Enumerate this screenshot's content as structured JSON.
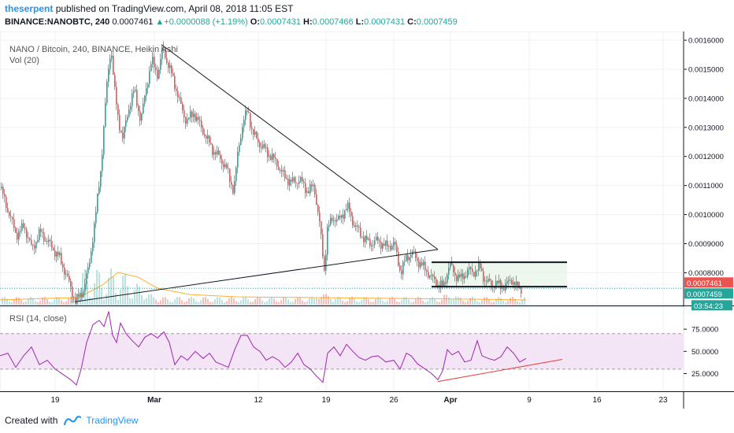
{
  "header": {
    "author": "theserpent",
    "publish_text": " published on TradingView.com, April 08, 2018 11:05 EST",
    "symbol": "BINANCE:NANOBTC, 240",
    "last": "0.0007461",
    "change_arrow": "▲",
    "change": "+0.0000088 (+1.19%)",
    "o_label": "O:",
    "o": "0.0007431",
    "h_label": "H:",
    "h": "0.0007466",
    "l_label": "L:",
    "l": "0.0007431",
    "c_label": "C:",
    "c": "0.0007459"
  },
  "footer": {
    "created_with": "Created with",
    "brand": "TradingView"
  },
  "colors": {
    "up": "#26a69a",
    "down": "#ef5350",
    "rsi_line": "#9c27b0",
    "rsi_band": "#f3e5f5",
    "trend": "#131722",
    "support": "#e53935",
    "accent": "#2196f3"
  },
  "chart_data": [
    {
      "type": "candlestick",
      "title": "NANO / Bitcoin, 240, BINANCE, Heikin Ashi",
      "volume_label": "Vol (20)",
      "ylim": [
        0.00069,
        0.00163
      ],
      "y_ticks": [
        "0.0016000",
        "0.0015000",
        "0.0014000",
        "0.0013000",
        "0.0012000",
        "0.0011000",
        "0.0010000",
        "0.0009000",
        "0.0008000"
      ],
      "y_tick_values": [
        0.0016,
        0.0015,
        0.0014,
        0.0013,
        0.0012,
        0.0011,
        0.001,
        0.0009,
        0.0008
      ],
      "x_ticks": [
        "19",
        "Mar",
        "12",
        "19",
        "26",
        "Apr",
        "9",
        "16",
        "23"
      ],
      "price_labels": [
        {
          "text": "0.0007461",
          "value": 0.0007461,
          "color": "#ef5350"
        },
        {
          "text": "0.0007459",
          "value": 0.0007459,
          "color": "#26a69a"
        },
        {
          "text": "03:54:23",
          "value": 0.000722,
          "color": "#26a69a"
        }
      ],
      "price_path": [
        [
          0,
          0.00109
        ],
        [
          10,
          0.00101
        ],
        [
          20,
          0.00093
        ],
        [
          30,
          0.00096
        ],
        [
          40,
          0.00088
        ],
        [
          50,
          0.00094
        ],
        [
          62,
          0.0009
        ],
        [
          75,
          0.00085
        ],
        [
          85,
          0.00078
        ],
        [
          95,
          0.0007
        ],
        [
          105,
          0.00074
        ],
        [
          112,
          0.00082
        ],
        [
          120,
          0.00098
        ],
        [
          128,
          0.00118
        ],
        [
          135,
          0.00145
        ],
        [
          140,
          0.00158
        ],
        [
          145,
          0.00142
        ],
        [
          150,
          0.00132
        ],
        [
          155,
          0.00126
        ],
        [
          162,
          0.00136
        ],
        [
          170,
          0.00143
        ],
        [
          178,
          0.00132
        ],
        [
          185,
          0.00144
        ],
        [
          192,
          0.00153
        ],
        [
          200,
          0.00148
        ],
        [
          206,
          0.00158
        ],
        [
          212,
          0.00152
        ],
        [
          220,
          0.00146
        ],
        [
          228,
          0.00138
        ],
        [
          236,
          0.00132
        ],
        [
          245,
          0.00135
        ],
        [
          255,
          0.0013
        ],
        [
          262,
          0.00126
        ],
        [
          270,
          0.00122
        ],
        [
          280,
          0.00119
        ],
        [
          288,
          0.00115
        ],
        [
          296,
          0.00108
        ],
        [
          302,
          0.00123
        ],
        [
          308,
          0.00132
        ],
        [
          314,
          0.00136
        ],
        [
          320,
          0.00128
        ],
        [
          330,
          0.00124
        ],
        [
          340,
          0.00121
        ],
        [
          350,
          0.00118
        ],
        [
          360,
          0.00113
        ],
        [
          370,
          0.00111
        ],
        [
          380,
          0.00112
        ],
        [
          390,
          0.00108
        ],
        [
          398,
          0.0011
        ],
        [
          405,
          0.00097
        ],
        [
          411,
          0.00081
        ],
        [
          415,
          0.00095
        ],
        [
          422,
          0.00099
        ],
        [
          430,
          0.00098
        ],
        [
          440,
          0.00103
        ],
        [
          448,
          0.00097
        ],
        [
          458,
          0.00093
        ],
        [
          468,
          0.0009
        ],
        [
          478,
          0.00091
        ],
        [
          490,
          0.00089
        ],
        [
          500,
          0.0009
        ],
        [
          508,
          0.0008
        ],
        [
          515,
          0.00085
        ],
        [
          522,
          0.00087
        ],
        [
          530,
          0.00084
        ],
        [
          540,
          0.00081
        ],
        [
          548,
          0.00078
        ],
        [
          556,
          0.00076
        ],
        [
          562,
          0.00075
        ],
        [
          570,
          0.00083
        ],
        [
          578,
          0.00079
        ],
        [
          585,
          0.00078
        ],
        [
          594,
          0.00081
        ],
        [
          600,
          0.0008
        ],
        [
          608,
          0.00082
        ],
        [
          616,
          0.00077
        ],
        [
          624,
          0.00076
        ],
        [
          632,
          0.00076
        ],
        [
          640,
          0.00075
        ],
        [
          648,
          0.00078
        ],
        [
          655,
          0.00075
        ],
        [
          662,
          0.000746
        ]
      ],
      "annotations": {
        "triangle_upper": [
          [
            205,
            0.001585
          ],
          [
            556,
            0.00088
          ]
        ],
        "triangle_lower": [
          [
            95,
            0.0007
          ],
          [
            556,
            0.00088
          ]
        ],
        "channel_top": [
          [
            548,
            0.000836
          ],
          [
            720,
            0.000836
          ]
        ],
        "channel_bottom": [
          [
            548,
            0.000752
          ],
          [
            720,
            0.000752
          ]
        ]
      },
      "grid": true
    },
    {
      "type": "line",
      "title": "RSI (14, close)",
      "ylim": [
        5,
        100
      ],
      "y_ticks": [
        "75.0000",
        "50.0000",
        "25.0000"
      ],
      "y_tick_values": [
        75,
        50,
        25
      ],
      "band": [
        30,
        70
      ],
      "series": [
        {
          "values": [
            [
              0,
              45
            ],
            [
              10,
              48
            ],
            [
              20,
              32
            ],
            [
              30,
              45
            ],
            [
              40,
              55
            ],
            [
              50,
              35
            ],
            [
              60,
              40
            ],
            [
              70,
              30
            ],
            [
              80,
              24
            ],
            [
              90,
              18
            ],
            [
              97,
              12
            ],
            [
              103,
              30
            ],
            [
              110,
              60
            ],
            [
              118,
              80
            ],
            [
              126,
              85
            ],
            [
              132,
              78
            ],
            [
              138,
              95
            ],
            [
              143,
              68
            ],
            [
              148,
              60
            ],
            [
              153,
              82
            ],
            [
              160,
              70
            ],
            [
              168,
              62
            ],
            [
              176,
              55
            ],
            [
              184,
              66
            ],
            [
              192,
              70
            ],
            [
              200,
              65
            ],
            [
              208,
              72
            ],
            [
              215,
              60
            ],
            [
              222,
              35
            ],
            [
              230,
              45
            ],
            [
              238,
              40
            ],
            [
              248,
              50
            ],
            [
              258,
              42
            ],
            [
              266,
              48
            ],
            [
              274,
              38
            ],
            [
              282,
              35
            ],
            [
              290,
              32
            ],
            [
              298,
              52
            ],
            [
              306,
              68
            ],
            [
              314,
              68
            ],
            [
              322,
              55
            ],
            [
              330,
              50
            ],
            [
              338,
              40
            ],
            [
              346,
              44
            ],
            [
              354,
              40
            ],
            [
              362,
              32
            ],
            [
              370,
              38
            ],
            [
              378,
              48
            ],
            [
              386,
              35
            ],
            [
              394,
              30
            ],
            [
              402,
              22
            ],
            [
              410,
              15
            ],
            [
              416,
              48
            ],
            [
              424,
              55
            ],
            [
              432,
              45
            ],
            [
              440,
              58
            ],
            [
              448,
              50
            ],
            [
              456,
              43
            ],
            [
              464,
              40
            ],
            [
              472,
              44
            ],
            [
              480,
              45
            ],
            [
              490,
              38
            ],
            [
              500,
              40
            ],
            [
              508,
              30
            ],
            [
              516,
              48
            ],
            [
              522,
              45
            ],
            [
              530,
              36
            ],
            [
              540,
              30
            ],
            [
              548,
              25
            ],
            [
              556,
              18
            ],
            [
              562,
              28
            ],
            [
              568,
              52
            ],
            [
              574,
              46
            ],
            [
              582,
              50
            ],
            [
              590,
              38
            ],
            [
              598,
              40
            ],
            [
              606,
              62
            ],
            [
              612,
              45
            ],
            [
              620,
              42
            ],
            [
              628,
              40
            ],
            [
              636,
              44
            ],
            [
              644,
              55
            ],
            [
              652,
              48
            ],
            [
              660,
              38
            ],
            [
              668,
              42
            ]
          ]
        }
      ],
      "annotations": {
        "support_line": [
          [
            556,
            16
          ],
          [
            714,
            41
          ]
        ]
      },
      "grid": true
    }
  ]
}
